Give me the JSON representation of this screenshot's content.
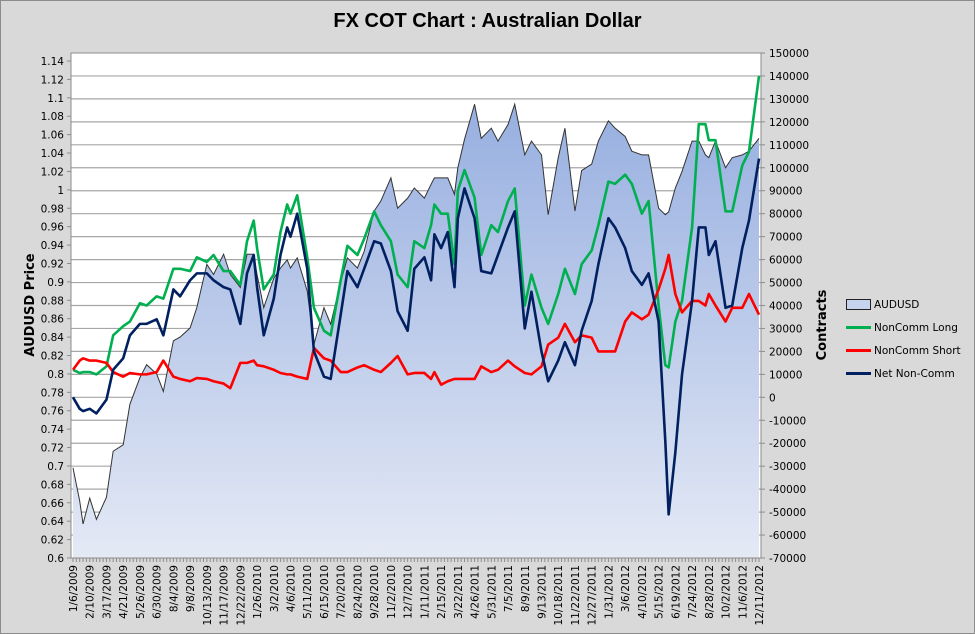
{
  "chart_data": {
    "type": "line",
    "title": "FX COT Chart : Australian Dollar",
    "ylabel_left": "AUDUSD Price",
    "ylabel_right": "Contracts",
    "ylim_left": [
      0.6,
      1.14
    ],
    "ylim_right": [
      -70000,
      150000
    ],
    "y_left_ticks": [
      "0.6",
      "0.62",
      "0.64",
      "0.66",
      "0.68",
      "0.7",
      "0.72",
      "0.74",
      "0.76",
      "0.78",
      "0.8",
      "0.82",
      "0.84",
      "0.86",
      "0.88",
      "0.9",
      "0.92",
      "0.94",
      "0.96",
      "0.98",
      "1",
      "1.02",
      "1.04",
      "1.06",
      "1.08",
      "1.1",
      "1.12",
      "1.14"
    ],
    "y_right_ticks": [
      "-70000",
      "-60000",
      "-50000",
      "-40000",
      "-30000",
      "-20000",
      "-10000",
      "0",
      "10000",
      "20000",
      "30000",
      "40000",
      "50000",
      "60000",
      "70000",
      "80000",
      "90000",
      "100000",
      "110000",
      "120000",
      "130000",
      "140000",
      "150000"
    ],
    "x_ticks": [
      "1/6/2009",
      "2/10/2009",
      "3/17/2009",
      "4/21/2009",
      "5/26/2009",
      "6/30/2009",
      "8/4/2009",
      "9/8/2009",
      "10/13/2009",
      "11/17/2009",
      "12/22/2009",
      "1/26/2010",
      "3/2/2010",
      "4/6/2010",
      "5/11/2010",
      "6/15/2010",
      "7/20/2010",
      "8/24/2010",
      "9/28/2010",
      "11/2/2010",
      "12/7/2010",
      "1/11/2011",
      "2/15/2011",
      "3/22/2011",
      "4/26/2011",
      "5/31/2011",
      "7/5/2011",
      "8/9/2011",
      "9/13/2011",
      "10/18/2011",
      "11/22/2011",
      "12/27/2011",
      "1/31/2012",
      "3/6/2012",
      "4/10/2012",
      "5/15/2012",
      "6/19/2012",
      "7/24/2012",
      "8/28/2012",
      "10/2/2012",
      "11/6/2012",
      "12/11/2012"
    ],
    "grid": "horizontal",
    "legend_position": "right",
    "x": [
      "1/6/2009",
      "1/20/2009",
      "1/27/2009",
      "2/10/2009",
      "2/24/2009",
      "3/17/2009",
      "3/31/2009",
      "4/21/2009",
      "5/5/2009",
      "5/26/2009",
      "6/9/2009",
      "6/30/2009",
      "7/14/2009",
      "8/4/2009",
      "8/18/2009",
      "9/8/2009",
      "9/22/2009",
      "10/13/2009",
      "10/27/2009",
      "11/17/2009",
      "12/1/2009",
      "12/22/2009",
      "1/5/2010",
      "1/19/2010",
      "1/26/2010",
      "2/9/2010",
      "3/2/2010",
      "3/16/2010",
      "3/30/2010",
      "4/6/2010",
      "4/20/2010",
      "5/11/2010",
      "5/25/2010",
      "6/15/2010",
      "6/29/2010",
      "7/20/2010",
      "8/3/2010",
      "8/24/2010",
      "9/7/2010",
      "9/28/2010",
      "10/12/2010",
      "11/2/2010",
      "11/16/2010",
      "12/7/2010",
      "12/21/2010",
      "1/11/2011",
      "1/25/2011",
      "2/1/2011",
      "2/15/2011",
      "3/1/2011",
      "3/15/2011",
      "3/22/2011",
      "4/5/2011",
      "4/26/2011",
      "5/10/2011",
      "5/31/2011",
      "6/14/2011",
      "7/5/2011",
      "7/19/2011",
      "8/9/2011",
      "8/23/2011",
      "9/13/2011",
      "9/27/2011",
      "10/18/2011",
      "11/1/2011",
      "11/22/2011",
      "12/6/2011",
      "12/27/2011",
      "1/10/2012",
      "1/31/2012",
      "2/14/2012",
      "3/6/2012",
      "3/20/2012",
      "4/10/2012",
      "4/24/2012",
      "5/15/2012",
      "5/29/2012",
      "6/5/2012",
      "6/19/2012",
      "7/3/2012",
      "7/24/2012",
      "8/7/2012",
      "8/21/2012",
      "8/28/2012",
      "9/11/2012",
      "10/2/2012",
      "10/16/2012",
      "11/6/2012",
      "11/20/2012",
      "12/11/2012"
    ],
    "series": [
      {
        "name": "AUDUSD",
        "type": "area",
        "axis": "left",
        "color": "#a3b8e3",
        "values": [
          0.698,
          0.662,
          0.637,
          0.665,
          0.642,
          0.666,
          0.716,
          0.723,
          0.767,
          0.796,
          0.81,
          0.8,
          0.781,
          0.836,
          0.84,
          0.85,
          0.872,
          0.919,
          0.908,
          0.93,
          0.908,
          0.894,
          0.93,
          0.93,
          0.908,
          0.872,
          0.904,
          0.915,
          0.924,
          0.915,
          0.926,
          0.89,
          0.832,
          0.872,
          0.854,
          0.9,
          0.926,
          0.915,
          0.933,
          0.977,
          0.988,
          1.013,
          0.98,
          0.991,
          1.002,
          0.991,
          1.006,
          1.013,
          1.013,
          1.013,
          0.995,
          1.024,
          1.055,
          1.093,
          1.056,
          1.067,
          1.053,
          1.071,
          1.093,
          1.038,
          1.053,
          1.038,
          0.973,
          1.035,
          1.067,
          0.977,
          1.021,
          1.028,
          1.053,
          1.075,
          1.067,
          1.058,
          1.042,
          1.038,
          1.038,
          0.98,
          0.973,
          0.976,
          1.002,
          1.02,
          1.053,
          1.053,
          1.038,
          1.035,
          1.053,
          1.024,
          1.035,
          1.038,
          1.042,
          1.056
        ]
      },
      {
        "name": "NonComm Long",
        "axis": "right",
        "color": "#00b050",
        "values": [
          12000,
          10600,
          11000,
          11000,
          10000,
          13500,
          27000,
          31000,
          33000,
          41000,
          40000,
          44000,
          43000,
          56000,
          56000,
          55000,
          61000,
          59000,
          62000,
          55000,
          55000,
          49000,
          68000,
          77000,
          65000,
          47000,
          53500,
          72000,
          84000,
          80000,
          88000,
          61000,
          39000,
          29000,
          27000,
          51000,
          66000,
          62000,
          69000,
          81000,
          75000,
          68000,
          53500,
          48000,
          68000,
          65000,
          75000,
          84000,
          80000,
          80000,
          58000,
          90000,
          99000,
          87000,
          62000,
          75000,
          72000,
          85500,
          91000,
          40000,
          53500,
          39000,
          32000,
          45000,
          56000,
          45000,
          58000,
          64000,
          75000,
          94000,
          93000,
          97000,
          93000,
          80000,
          85500,
          40000,
          14000,
          13000,
          33000,
          42000,
          74000,
          119000,
          119000,
          112000,
          112000,
          81000,
          81000,
          101000,
          107000,
          140000
        ]
      },
      {
        "name": "NonComm Short",
        "axis": "right",
        "color": "#ff0000",
        "values": [
          12000,
          16000,
          17000,
          16000,
          16000,
          15000,
          11000,
          9000,
          10600,
          10000,
          10000,
          11000,
          16000,
          9000,
          8000,
          7000,
          8400,
          8000,
          7000,
          6000,
          4000,
          15000,
          15000,
          16000,
          14000,
          13500,
          12000,
          10600,
          10000,
          10000,
          9000,
          8000,
          21500,
          17000,
          16000,
          11000,
          11000,
          13000,
          14000,
          12000,
          11000,
          15000,
          18000,
          10000,
          10600,
          10600,
          8000,
          11000,
          5500,
          7000,
          8000,
          8000,
          8000,
          8000,
          13500,
          11000,
          12000,
          16000,
          13500,
          10600,
          10000,
          13500,
          23000,
          26000,
          32000,
          24000,
          27000,
          26000,
          20000,
          20000,
          20000,
          33000,
          37000,
          34000,
          36000,
          47000,
          56000,
          62000,
          45000,
          37000,
          42000,
          42000,
          40000,
          45000,
          40000,
          33000,
          39000,
          39000,
          45000,
          36000
        ]
      },
      {
        "name": "Net Non-Comm",
        "axis": "right",
        "color": "#002060",
        "values": [
          0,
          -5000,
          -6000,
          -5000,
          -7000,
          -1000,
          12000,
          17000,
          27000,
          32000,
          32000,
          34000,
          27000,
          47000,
          44000,
          51000,
          54000,
          54000,
          51000,
          48000,
          47000,
          32000,
          54000,
          62000,
          48000,
          27000,
          43000,
          62000,
          74000,
          70000,
          80000,
          56000,
          20000,
          9000,
          8000,
          36000,
          55000,
          48000,
          56000,
          68000,
          67000,
          55000,
          37500,
          29000,
          56000,
          61000,
          51000,
          71000,
          65000,
          72000,
          48000,
          78000,
          91000,
          78000,
          55000,
          54000,
          62000,
          74000,
          81000,
          30000,
          46000,
          20000,
          7000,
          16000,
          24000,
          14000,
          29000,
          42000,
          58000,
          78000,
          74000,
          65000,
          55000,
          49000,
          54000,
          33000,
          -19000,
          -51000,
          -24000,
          10000,
          42000,
          74000,
          74000,
          62000,
          68000,
          39000,
          40000,
          65000,
          77000,
          104000
        ]
      }
    ]
  }
}
